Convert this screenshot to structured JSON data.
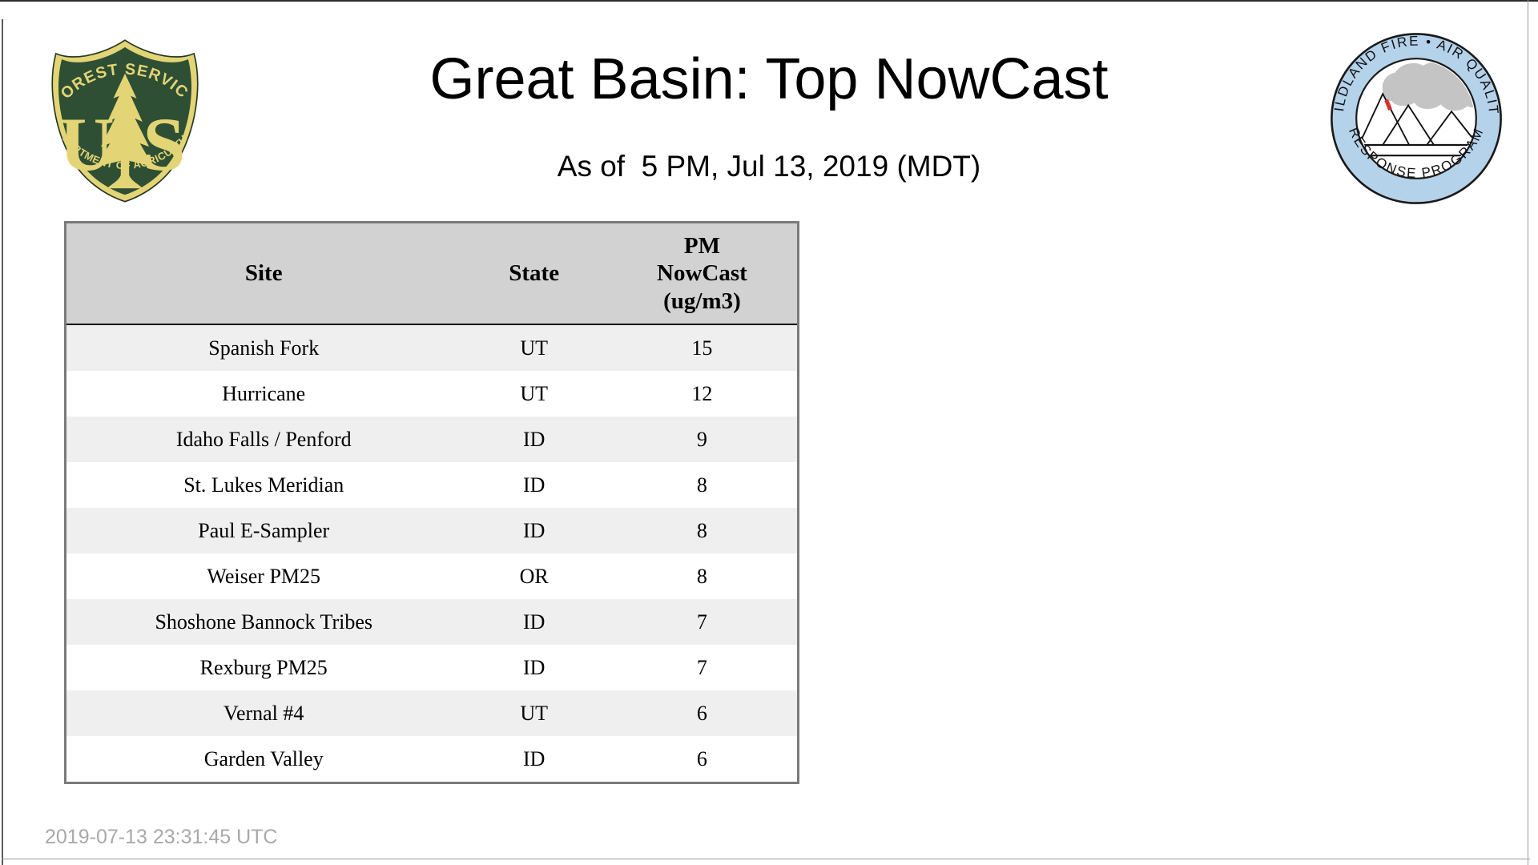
{
  "page": {
    "title": "Great Basin: Top NowCast",
    "subtitle": "As of  5 PM, Jul 13, 2019 (MDT)",
    "footer_timestamp": "2019-07-13 23:31:45 UTC"
  },
  "logos": {
    "forest_service": {
      "arc_top": "FOREST SERVICE",
      "arc_bottom": "DEPARTMENT OF AGRICULTURE",
      "letter_left": "U",
      "letter_right": "S",
      "colors": {
        "green": "#2e4f33",
        "gold": "#e3d476"
      }
    },
    "wfaqrp": {
      "arc_top": "WILDLAND FIRE • AIR QUALITY",
      "arc_bottom": "RESPONSE PROGRAM",
      "colors": {
        "ring_blue": "#b5d2eb",
        "smoke_gray": "#c4c4c4",
        "flame_red": "#d93025"
      }
    }
  },
  "table": {
    "headers": {
      "site": "Site",
      "state": "State",
      "pm_lines": [
        "PM",
        "NowCast",
        "(ug/m3)"
      ]
    },
    "rows": [
      {
        "site": "Spanish Fork",
        "state": "UT",
        "value": "15"
      },
      {
        "site": "Hurricane",
        "state": "UT",
        "value": "12"
      },
      {
        "site": "Idaho Falls / Penford",
        "state": "ID",
        "value": "9"
      },
      {
        "site": "St. Lukes Meridian",
        "state": "ID",
        "value": "8"
      },
      {
        "site": "Paul E-Sampler",
        "state": "ID",
        "value": "8"
      },
      {
        "site": "Weiser PM25",
        "state": "OR",
        "value": "8"
      },
      {
        "site": "Shoshone Bannock Tribes",
        "state": "ID",
        "value": "7"
      },
      {
        "site": "Rexburg PM25",
        "state": "ID",
        "value": "7"
      },
      {
        "site": "Vernal #4",
        "state": "UT",
        "value": "6"
      },
      {
        "site": "Garden Valley",
        "state": "ID",
        "value": "6"
      }
    ],
    "style": {
      "header_bg": "#d2d2d2",
      "stripe_bg": "#efefef",
      "border_gray": "#7a7a7a"
    }
  },
  "chart_data": {
    "type": "table",
    "title": "Great Basin: Top NowCast",
    "subtitle": "As of  5 PM, Jul 13, 2019 (MDT)",
    "columns": [
      "Site",
      "State",
      "PM NowCast (ug/m3)"
    ],
    "rows": [
      [
        "Spanish Fork",
        "UT",
        15
      ],
      [
        "Hurricane",
        "UT",
        12
      ],
      [
        "Idaho Falls / Penford",
        "ID",
        9
      ],
      [
        "St. Lukes Meridian",
        "ID",
        8
      ],
      [
        "Paul E-Sampler",
        "ID",
        8
      ],
      [
        "Weiser PM25",
        "OR",
        8
      ],
      [
        "Shoshone Bannock Tribes",
        "ID",
        7
      ],
      [
        "Rexburg PM25",
        "ID",
        7
      ],
      [
        "Vernal #4",
        "UT",
        6
      ],
      [
        "Garden Valley",
        "ID",
        6
      ]
    ],
    "footer": "2019-07-13 23:31:45 UTC"
  }
}
